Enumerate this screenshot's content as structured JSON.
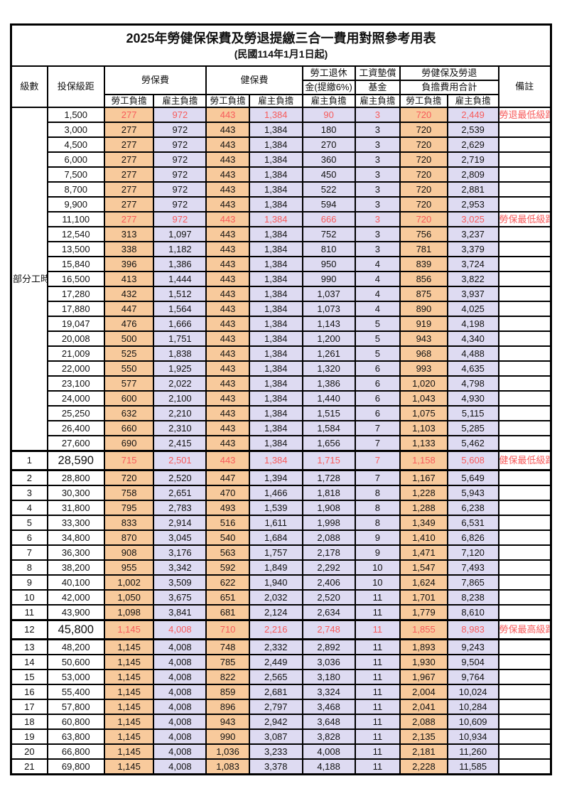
{
  "title": "2025年勞健保保費及勞退提繳三合一費用對照參考用表",
  "subtitle": "(民國114年1月1日起)",
  "colors": {
    "employee_col_bg": "#F8CA9C",
    "employer_col_bg": "#DEDBF2",
    "highlight_red": "#F75B5B",
    "border_black": "#000000"
  },
  "header": {
    "level": "級數",
    "bracket": "投保級距",
    "labor_ins": "勞保費",
    "health_ins": "健保費",
    "pension_line1": "勞工退休",
    "pension_line2": "金(提繳6%)",
    "wage_fund_line1": "工資墊償",
    "wage_fund_line2": "基金",
    "total_line1": "勞健保及勞退",
    "total_line2": "負擔費用合計",
    "remark": "備註",
    "employee": "勞工負擔",
    "employer": "雇主負擔"
  },
  "part_time_label": "部分工時",
  "rows": [
    {
      "level": "",
      "bracket": "1,500",
      "v": [
        "277",
        "972",
        "443",
        "1,384",
        "90",
        "3",
        "720",
        "2,449"
      ],
      "remark": "勞退最低級距",
      "red": true,
      "big": false
    },
    {
      "level": "",
      "bracket": "3,000",
      "v": [
        "277",
        "972",
        "443",
        "1,384",
        "180",
        "3",
        "720",
        "2,539"
      ],
      "remark": "",
      "red": false,
      "big": false
    },
    {
      "level": "",
      "bracket": "4,500",
      "v": [
        "277",
        "972",
        "443",
        "1,384",
        "270",
        "3",
        "720",
        "2,629"
      ],
      "remark": "",
      "red": false,
      "big": false
    },
    {
      "level": "",
      "bracket": "6,000",
      "v": [
        "277",
        "972",
        "443",
        "1,384",
        "360",
        "3",
        "720",
        "2,719"
      ],
      "remark": "",
      "red": false,
      "big": false
    },
    {
      "level": "",
      "bracket": "7,500",
      "v": [
        "277",
        "972",
        "443",
        "1,384",
        "450",
        "3",
        "720",
        "2,809"
      ],
      "remark": "",
      "red": false,
      "big": false
    },
    {
      "level": "",
      "bracket": "8,700",
      "v": [
        "277",
        "972",
        "443",
        "1,384",
        "522",
        "3",
        "720",
        "2,881"
      ],
      "remark": "",
      "red": false,
      "big": false
    },
    {
      "level": "",
      "bracket": "9,900",
      "v": [
        "277",
        "972",
        "443",
        "1,384",
        "594",
        "3",
        "720",
        "2,953"
      ],
      "remark": "",
      "red": false,
      "big": false
    },
    {
      "level": "",
      "bracket": "11,100",
      "v": [
        "277",
        "972",
        "443",
        "1,384",
        "666",
        "3",
        "720",
        "3,025"
      ],
      "remark": "勞保最低級距",
      "red": true,
      "big": false
    },
    {
      "level": "",
      "bracket": "12,540",
      "v": [
        "313",
        "1,097",
        "443",
        "1,384",
        "752",
        "3",
        "756",
        "3,237"
      ],
      "remark": "",
      "red": false,
      "big": false
    },
    {
      "level": "",
      "bracket": "13,500",
      "v": [
        "338",
        "1,182",
        "443",
        "1,384",
        "810",
        "3",
        "781",
        "3,379"
      ],
      "remark": "",
      "red": false,
      "big": false
    },
    {
      "level": "",
      "bracket": "15,840",
      "v": [
        "396",
        "1,386",
        "443",
        "1,384",
        "950",
        "4",
        "839",
        "3,724"
      ],
      "remark": "",
      "red": false,
      "big": false
    },
    {
      "level": "",
      "bracket": "16,500",
      "v": [
        "413",
        "1,444",
        "443",
        "1,384",
        "990",
        "4",
        "856",
        "3,822"
      ],
      "remark": "",
      "red": false,
      "big": false
    },
    {
      "level": "",
      "bracket": "17,280",
      "v": [
        "432",
        "1,512",
        "443",
        "1,384",
        "1,037",
        "4",
        "875",
        "3,937"
      ],
      "remark": "",
      "red": false,
      "big": false
    },
    {
      "level": "",
      "bracket": "17,880",
      "v": [
        "447",
        "1,564",
        "443",
        "1,384",
        "1,073",
        "4",
        "890",
        "4,025"
      ],
      "remark": "",
      "red": false,
      "big": false
    },
    {
      "level": "",
      "bracket": "19,047",
      "v": [
        "476",
        "1,666",
        "443",
        "1,384",
        "1,143",
        "5",
        "919",
        "4,198"
      ],
      "remark": "",
      "red": false,
      "big": false
    },
    {
      "level": "",
      "bracket": "20,008",
      "v": [
        "500",
        "1,751",
        "443",
        "1,384",
        "1,200",
        "5",
        "943",
        "4,340"
      ],
      "remark": "",
      "red": false,
      "big": false
    },
    {
      "level": "",
      "bracket": "21,009",
      "v": [
        "525",
        "1,838",
        "443",
        "1,384",
        "1,261",
        "5",
        "968",
        "4,488"
      ],
      "remark": "",
      "red": false,
      "big": false
    },
    {
      "level": "",
      "bracket": "22,000",
      "v": [
        "550",
        "1,925",
        "443",
        "1,384",
        "1,320",
        "6",
        "993",
        "4,635"
      ],
      "remark": "",
      "red": false,
      "big": false
    },
    {
      "level": "",
      "bracket": "23,100",
      "v": [
        "577",
        "2,022",
        "443",
        "1,384",
        "1,386",
        "6",
        "1,020",
        "4,798"
      ],
      "remark": "",
      "red": false,
      "big": false
    },
    {
      "level": "",
      "bracket": "24,000",
      "v": [
        "600",
        "2,100",
        "443",
        "1,384",
        "1,440",
        "6",
        "1,043",
        "4,930"
      ],
      "remark": "",
      "red": false,
      "big": false
    },
    {
      "level": "",
      "bracket": "25,250",
      "v": [
        "632",
        "2,210",
        "443",
        "1,384",
        "1,515",
        "6",
        "1,075",
        "5,115"
      ],
      "remark": "",
      "red": false,
      "big": false
    },
    {
      "level": "",
      "bracket": "26,400",
      "v": [
        "660",
        "2,310",
        "443",
        "1,384",
        "1,584",
        "7",
        "1,103",
        "5,285"
      ],
      "remark": "",
      "red": false,
      "big": false
    },
    {
      "level": "",
      "bracket": "27,600",
      "v": [
        "690",
        "2,415",
        "443",
        "1,384",
        "1,656",
        "7",
        "1,133",
        "5,462"
      ],
      "remark": "",
      "red": false,
      "big": false
    },
    {
      "level": "1",
      "bracket": "28,590",
      "v": [
        "715",
        "2,501",
        "443",
        "1,384",
        "1,715",
        "7",
        "1,158",
        "5,608"
      ],
      "remark": "健保最低級距",
      "red": true,
      "big": true
    },
    {
      "level": "2",
      "bracket": "28,800",
      "v": [
        "720",
        "2,520",
        "447",
        "1,394",
        "1,728",
        "7",
        "1,167",
        "5,649"
      ],
      "remark": "",
      "red": false,
      "big": false
    },
    {
      "level": "3",
      "bracket": "30,300",
      "v": [
        "758",
        "2,651",
        "470",
        "1,466",
        "1,818",
        "8",
        "1,228",
        "5,943"
      ],
      "remark": "",
      "red": false,
      "big": false
    },
    {
      "level": "4",
      "bracket": "31,800",
      "v": [
        "795",
        "2,783",
        "493",
        "1,539",
        "1,908",
        "8",
        "1,288",
        "6,238"
      ],
      "remark": "",
      "red": false,
      "big": false
    },
    {
      "level": "5",
      "bracket": "33,300",
      "v": [
        "833",
        "2,914",
        "516",
        "1,611",
        "1,998",
        "8",
        "1,349",
        "6,531"
      ],
      "remark": "",
      "red": false,
      "big": false
    },
    {
      "level": "6",
      "bracket": "34,800",
      "v": [
        "870",
        "3,045",
        "540",
        "1,684",
        "2,088",
        "9",
        "1,410",
        "6,826"
      ],
      "remark": "",
      "red": false,
      "big": false
    },
    {
      "level": "7",
      "bracket": "36,300",
      "v": [
        "908",
        "3,176",
        "563",
        "1,757",
        "2,178",
        "9",
        "1,471",
        "7,120"
      ],
      "remark": "",
      "red": false,
      "big": false
    },
    {
      "level": "8",
      "bracket": "38,200",
      "v": [
        "955",
        "3,342",
        "592",
        "1,849",
        "2,292",
        "10",
        "1,547",
        "7,493"
      ],
      "remark": "",
      "red": false,
      "big": false
    },
    {
      "level": "9",
      "bracket": "40,100",
      "v": [
        "1,002",
        "3,509",
        "622",
        "1,940",
        "2,406",
        "10",
        "1,624",
        "7,865"
      ],
      "remark": "",
      "red": false,
      "big": false
    },
    {
      "level": "10",
      "bracket": "42,000",
      "v": [
        "1,050",
        "3,675",
        "651",
        "2,032",
        "2,520",
        "11",
        "1,701",
        "8,238"
      ],
      "remark": "",
      "red": false,
      "big": false
    },
    {
      "level": "11",
      "bracket": "43,900",
      "v": [
        "1,098",
        "3,841",
        "681",
        "2,124",
        "2,634",
        "11",
        "1,779",
        "8,610"
      ],
      "remark": "",
      "red": false,
      "big": false
    },
    {
      "level": "12",
      "bracket": "45,800",
      "v": [
        "1,145",
        "4,008",
        "710",
        "2,216",
        "2,748",
        "11",
        "1,855",
        "8,983"
      ],
      "remark": "勞保最高級距",
      "red": true,
      "big": true
    },
    {
      "level": "13",
      "bracket": "48,200",
      "v": [
        "1,145",
        "4,008",
        "748",
        "2,332",
        "2,892",
        "11",
        "1,893",
        "9,243"
      ],
      "remark": "",
      "red": false,
      "big": false
    },
    {
      "level": "14",
      "bracket": "50,600",
      "v": [
        "1,145",
        "4,008",
        "785",
        "2,449",
        "3,036",
        "11",
        "1,930",
        "9,504"
      ],
      "remark": "",
      "red": false,
      "big": false
    },
    {
      "level": "15",
      "bracket": "53,000",
      "v": [
        "1,145",
        "4,008",
        "822",
        "2,565",
        "3,180",
        "11",
        "1,967",
        "9,764"
      ],
      "remark": "",
      "red": false,
      "big": false
    },
    {
      "level": "16",
      "bracket": "55,400",
      "v": [
        "1,145",
        "4,008",
        "859",
        "2,681",
        "3,324",
        "11",
        "2,004",
        "10,024"
      ],
      "remark": "",
      "red": false,
      "big": false
    },
    {
      "level": "17",
      "bracket": "57,800",
      "v": [
        "1,145",
        "4,008",
        "896",
        "2,797",
        "3,468",
        "11",
        "2,041",
        "10,284"
      ],
      "remark": "",
      "red": false,
      "big": false
    },
    {
      "level": "18",
      "bracket": "60,800",
      "v": [
        "1,145",
        "4,008",
        "943",
        "2,942",
        "3,648",
        "11",
        "2,088",
        "10,609"
      ],
      "remark": "",
      "red": false,
      "big": false
    },
    {
      "level": "19",
      "bracket": "63,800",
      "v": [
        "1,145",
        "4,008",
        "990",
        "3,087",
        "3,828",
        "11",
        "2,135",
        "10,934"
      ],
      "remark": "",
      "red": false,
      "big": false
    },
    {
      "level": "20",
      "bracket": "66,800",
      "v": [
        "1,145",
        "4,008",
        "1,036",
        "3,233",
        "4,008",
        "11",
        "2,181",
        "11,260"
      ],
      "remark": "",
      "red": false,
      "big": false
    },
    {
      "level": "21",
      "bracket": "69,800",
      "v": [
        "1,145",
        "4,008",
        "1,083",
        "3,378",
        "4,188",
        "11",
        "2,228",
        "11,585"
      ],
      "remark": "",
      "red": false,
      "big": false
    }
  ]
}
